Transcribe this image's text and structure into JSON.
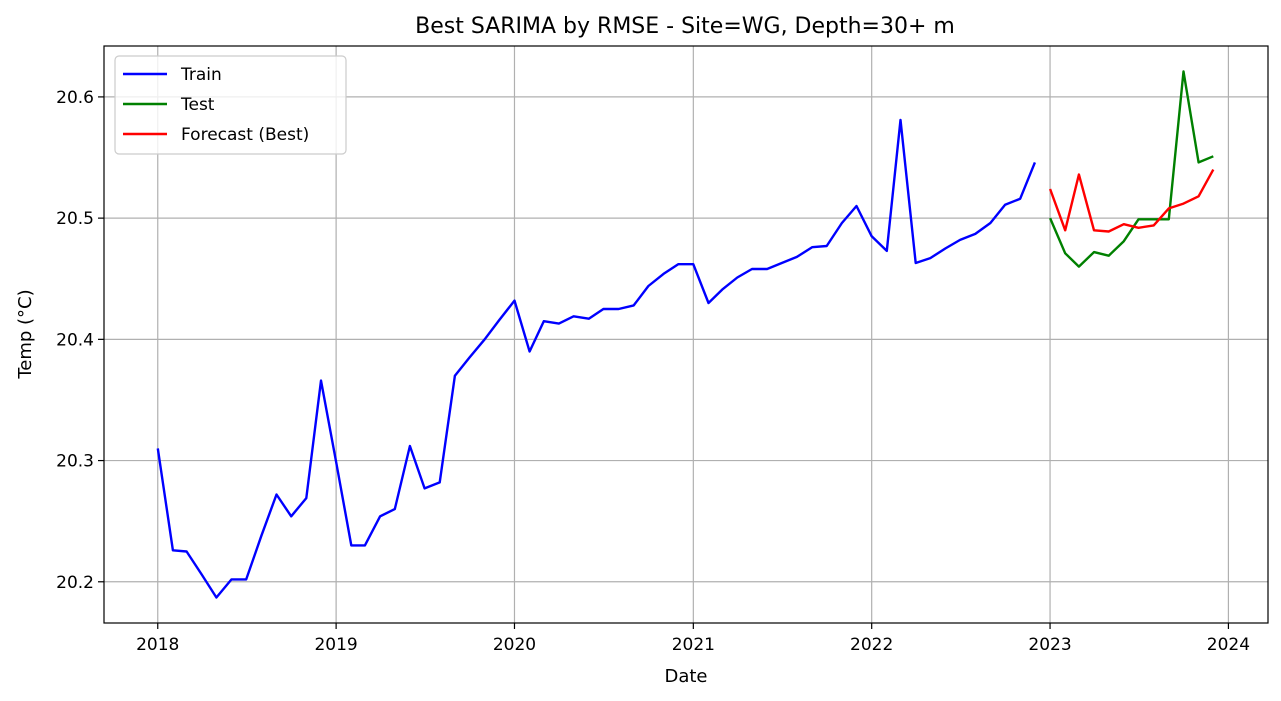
{
  "chart_data": {
    "type": "line",
    "title": "Best SARIMA by RMSE - Site=WG, Depth=30+ m",
    "xlabel": "Date",
    "ylabel": "Temp (°C)",
    "xlim": [
      "2017-09-13",
      "2024-03-22"
    ],
    "ylim": [
      20.166,
      20.642
    ],
    "x_ticks": [
      "2018",
      "2019",
      "2020",
      "2021",
      "2022",
      "2023",
      "2024"
    ],
    "y_ticks": [
      "20.2",
      "20.3",
      "20.4",
      "20.5",
      "20.6"
    ],
    "grid": true,
    "legend_position": "top-left",
    "series": [
      {
        "name": "Train",
        "color": "#0000ff",
        "x": [
          "2018-01",
          "2018-02",
          "2018-03",
          "2018-04",
          "2018-05",
          "2018-06",
          "2018-07",
          "2018-08",
          "2018-09",
          "2018-10",
          "2018-11",
          "2018-12",
          "2019-01",
          "2019-02",
          "2019-03",
          "2019-04",
          "2019-05",
          "2019-06",
          "2019-07",
          "2019-08",
          "2019-09",
          "2019-10",
          "2019-11",
          "2019-12",
          "2020-01",
          "2020-02",
          "2020-03",
          "2020-04",
          "2020-05",
          "2020-06",
          "2020-07",
          "2020-08",
          "2020-09",
          "2020-10",
          "2020-11",
          "2020-12",
          "2021-01",
          "2021-02",
          "2021-03",
          "2021-04",
          "2021-05",
          "2021-06",
          "2021-07",
          "2021-08",
          "2021-09",
          "2021-10",
          "2021-11",
          "2021-12",
          "2022-01",
          "2022-02",
          "2022-03",
          "2022-04",
          "2022-05",
          "2022-06",
          "2022-07",
          "2022-08",
          "2022-09",
          "2022-10",
          "2022-11",
          "2022-12"
        ],
        "y": [
          20.31,
          20.226,
          20.225,
          20.206,
          20.187,
          20.202,
          20.202,
          20.238,
          20.272,
          20.254,
          20.269,
          20.366,
          20.299,
          20.23,
          20.23,
          20.254,
          20.26,
          20.312,
          20.277,
          20.282,
          20.37,
          20.385,
          20.4,
          20.416,
          20.432,
          20.39,
          20.415,
          20.413,
          20.419,
          20.417,
          20.425,
          20.425,
          20.428,
          20.444,
          20.454,
          20.462,
          20.462,
          20.43,
          20.441,
          20.451,
          20.458,
          20.458,
          20.463,
          20.468,
          20.476,
          20.477,
          20.496,
          20.51,
          20.485,
          20.473,
          20.581,
          20.463,
          20.467,
          20.475,
          20.482,
          20.487,
          20.496,
          20.511,
          20.516,
          20.546
        ]
      },
      {
        "name": "Test",
        "color": "#008000",
        "x": [
          "2023-01",
          "2023-02",
          "2023-03",
          "2023-04",
          "2023-05",
          "2023-06",
          "2023-07",
          "2023-08",
          "2023-09",
          "2023-10",
          "2023-11",
          "2023-12"
        ],
        "y": [
          20.5,
          20.471,
          20.46,
          20.472,
          20.469,
          20.481,
          20.499,
          20.499,
          20.499,
          20.621,
          20.546,
          20.551
        ]
      },
      {
        "name": "Forecast (Best)",
        "color": "#ff0000",
        "x": [
          "2023-01",
          "2023-02",
          "2023-03",
          "2023-04",
          "2023-05",
          "2023-06",
          "2023-07",
          "2023-08",
          "2023-09",
          "2023-10",
          "2023-11",
          "2023-12"
        ],
        "y": [
          20.524,
          20.49,
          20.536,
          20.49,
          20.489,
          20.495,
          20.492,
          20.494,
          20.508,
          20.512,
          20.518,
          20.54
        ]
      }
    ]
  }
}
